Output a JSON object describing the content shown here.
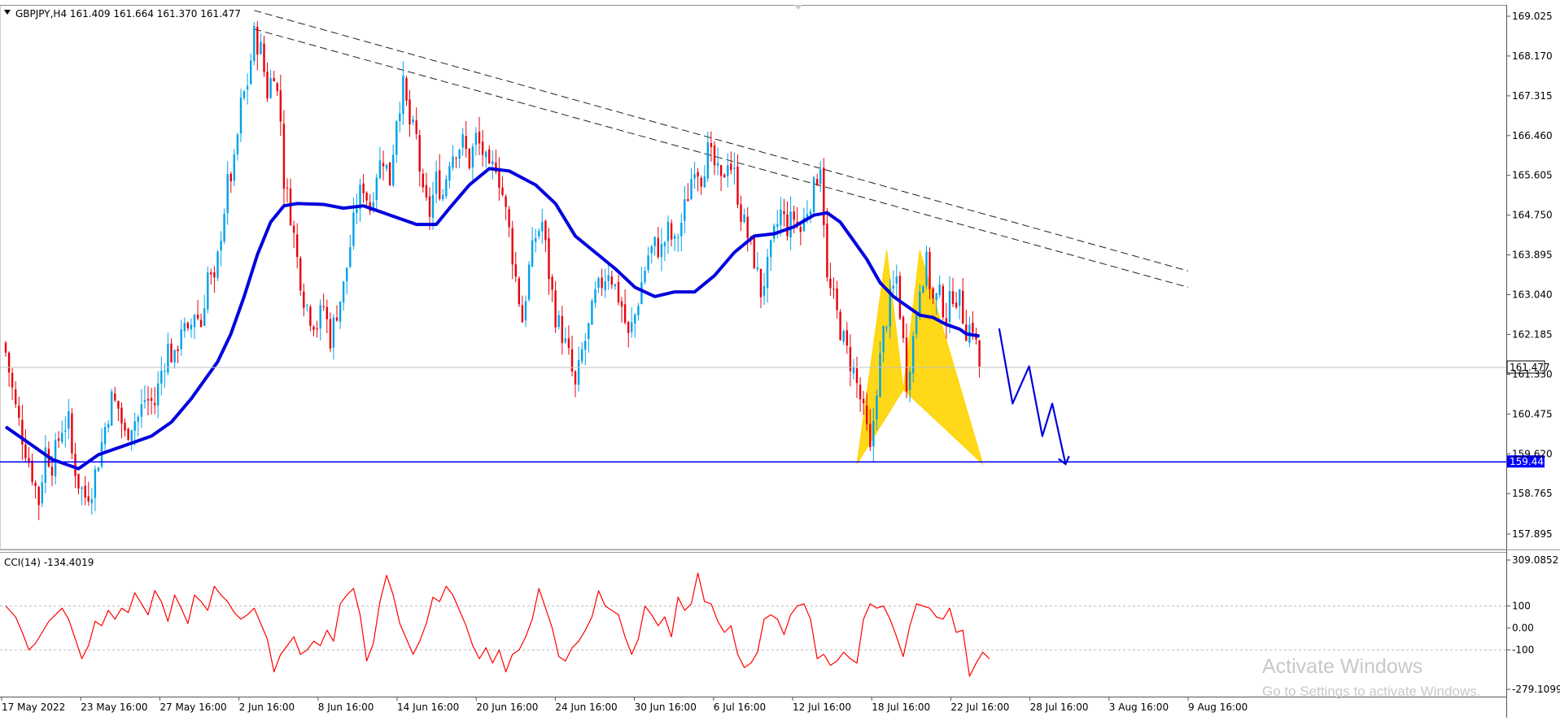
{
  "header": {
    "title": "GBPJPY,H4  161.409 161.664 161.370 161.477",
    "arrow_icon": "triangle-down-icon"
  },
  "price_axis": {
    "ticks": [
      "169.025",
      "168.170",
      "167.315",
      "166.460",
      "165.605",
      "164.750",
      "163.895",
      "163.040",
      "162.185",
      "161.330",
      "160.475",
      "159.620",
      "158.765",
      "157.895"
    ]
  },
  "price_levels": {
    "current_label": "161.477",
    "current_value": 161.477,
    "support_label": "159.447",
    "support_value": 159.447,
    "support_color": "#0000ff"
  },
  "cci_panel": {
    "title": "CCI(14) -134.4019",
    "scale_labels": [
      "309.0852",
      "100",
      "0.00",
      "-100",
      "-279.1099"
    ],
    "scale_values": [
      309.0852,
      100,
      0,
      -100,
      -279.1099
    ],
    "line_color": "#ff0000"
  },
  "time_axis": {
    "labels": [
      "17 May 2022",
      "23 May 16:00",
      "27 May 16:00",
      "2 Jun 16:00",
      "8 Jun 16:00",
      "14 Jun 16:00",
      "20 Jun 16:00",
      "24 Jun 16:00",
      "30 Jun 16:00",
      "6 Jul 16:00",
      "12 Jul 16:00",
      "18 Jul 16:00",
      "22 Jul 16:00",
      "28 Jul 16:00",
      "3 Aug 16:00",
      "9 Aug 16:00"
    ]
  },
  "watermark": {
    "line1": "Activate Windows",
    "line2": "Go to Settings to activate Windows."
  },
  "chart_data": {
    "type": "candlestick",
    "symbol": "GBPJPY",
    "timeframe": "H4",
    "ylim": [
      157.8,
      169.2
    ],
    "bull_color": "#00a2e8",
    "bear_color": "#e8000b",
    "ma_color": "#0000dd",
    "pattern_color": "#ffd400",
    "close_path": [
      [
        0,
        161.8
      ],
      [
        3,
        160.6
      ],
      [
        5,
        160.0
      ],
      [
        8,
        159.2
      ],
      [
        10,
        158.6
      ],
      [
        12,
        159.7
      ],
      [
        14,
        159.4
      ],
      [
        17,
        160.2
      ],
      [
        19,
        160.3
      ],
      [
        20,
        159.6
      ],
      [
        22,
        159.0
      ],
      [
        24,
        158.7
      ],
      [
        26,
        158.9
      ],
      [
        28,
        159.5
      ],
      [
        30,
        160.2
      ],
      [
        32,
        160.8
      ],
      [
        34,
        160.6
      ],
      [
        36,
        160.0
      ],
      [
        38,
        160.3
      ],
      [
        40,
        160.4
      ],
      [
        42,
        160.8
      ],
      [
        45,
        160.7
      ],
      [
        47,
        161.4
      ],
      [
        49,
        161.9
      ],
      [
        51,
        161.6
      ],
      [
        53,
        162.4
      ],
      [
        55,
        162.1
      ],
      [
        57,
        162.7
      ],
      [
        59,
        162.4
      ],
      [
        61,
        163.5
      ],
      [
        63,
        163.2
      ],
      [
        65,
        164.4
      ],
      [
        67,
        165.4
      ],
      [
        69,
        165.8
      ],
      [
        71,
        167.1
      ],
      [
        73,
        167.6
      ],
      [
        75,
        168.6
      ],
      [
        77,
        168.3
      ],
      [
        79,
        167.4
      ],
      [
        81,
        167.9
      ],
      [
        83,
        166.8
      ],
      [
        84,
        165.5
      ],
      [
        86,
        164.8
      ],
      [
        88,
        163.8
      ],
      [
        90,
        163.0
      ],
      [
        92,
        162.6
      ],
      [
        94,
        162.4
      ],
      [
        96,
        162.8
      ],
      [
        98,
        162.1
      ],
      [
        100,
        162.7
      ],
      [
        102,
        163.2
      ],
      [
        104,
        164.1
      ],
      [
        106,
        165.0
      ],
      [
        108,
        165.4
      ],
      [
        110,
        164.9
      ],
      [
        112,
        165.7
      ],
      [
        114,
        166.0
      ],
      [
        116,
        165.5
      ],
      [
        118,
        166.9
      ],
      [
        120,
        167.5
      ],
      [
        122,
        166.7
      ],
      [
        124,
        166.4
      ],
      [
        126,
        165.1
      ],
      [
        128,
        164.8
      ],
      [
        130,
        165.5
      ],
      [
        132,
        165.2
      ],
      [
        134,
        166.0
      ],
      [
        136,
        166.2
      ],
      [
        138,
        166.3
      ],
      [
        140,
        165.9
      ],
      [
        142,
        166.4
      ],
      [
        144,
        166.1
      ],
      [
        146,
        165.6
      ],
      [
        148,
        165.9
      ],
      [
        150,
        165.2
      ],
      [
        152,
        164.4
      ],
      [
        154,
        163.4
      ],
      [
        156,
        162.5
      ],
      [
        158,
        163.6
      ],
      [
        160,
        164.3
      ],
      [
        162,
        164.6
      ],
      [
        164,
        163.5
      ],
      [
        166,
        162.6
      ],
      [
        168,
        162.2
      ],
      [
        170,
        161.7
      ],
      [
        172,
        161.0
      ],
      [
        174,
        161.8
      ],
      [
        176,
        162.3
      ],
      [
        178,
        163.0
      ],
      [
        180,
        163.3
      ],
      [
        182,
        163.6
      ],
      [
        184,
        163.2
      ],
      [
        186,
        162.8
      ],
      [
        188,
        162.1
      ],
      [
        190,
        162.6
      ],
      [
        192,
        163.3
      ],
      [
        194,
        163.9
      ],
      [
        196,
        164.1
      ],
      [
        198,
        164.0
      ],
      [
        200,
        164.4
      ],
      [
        202,
        164.1
      ],
      [
        204,
        164.6
      ],
      [
        206,
        165.2
      ],
      [
        208,
        165.9
      ],
      [
        210,
        165.6
      ],
      [
        212,
        166.1
      ],
      [
        214,
        165.8
      ],
      [
        216,
        165.4
      ],
      [
        218,
        166.0
      ],
      [
        220,
        165.6
      ],
      [
        222,
        164.8
      ],
      [
        224,
        164.3
      ],
      [
        226,
        163.8
      ],
      [
        228,
        163.1
      ],
      [
        230,
        163.6
      ],
      [
        232,
        164.3
      ],
      [
        234,
        164.8
      ],
      [
        236,
        164.5
      ],
      [
        238,
        164.7
      ],
      [
        240,
        164.4
      ],
      [
        242,
        164.9
      ],
      [
        244,
        165.3
      ],
      [
        246,
        165.9
      ],
      [
        247,
        164.7
      ],
      [
        248,
        163.3
      ],
      [
        250,
        162.9
      ],
      [
        252,
        162.3
      ],
      [
        254,
        161.8
      ],
      [
        256,
        161.4
      ],
      [
        258,
        160.8
      ],
      [
        260,
        160.1
      ],
      [
        261,
        159.6
      ],
      [
        263,
        161.1
      ],
      [
        265,
        162.2
      ],
      [
        267,
        162.9
      ],
      [
        269,
        163.4
      ],
      [
        271,
        162.0
      ],
      [
        272,
        161.2
      ],
      [
        274,
        162.1
      ],
      [
        276,
        163.3
      ],
      [
        278,
        163.7
      ],
      [
        280,
        162.9
      ],
      [
        282,
        163.0
      ],
      [
        284,
        162.6
      ],
      [
        286,
        163.1
      ],
      [
        288,
        162.9
      ],
      [
        290,
        162.3
      ],
      [
        292,
        162.4
      ],
      [
        294,
        161.5
      ]
    ],
    "moving_average": [
      [
        0,
        160.2
      ],
      [
        6,
        159.9
      ],
      [
        14,
        159.5
      ],
      [
        22,
        159.3
      ],
      [
        28,
        159.6
      ],
      [
        36,
        159.8
      ],
      [
        44,
        160.0
      ],
      [
        50,
        160.3
      ],
      [
        56,
        160.8
      ],
      [
        60,
        161.2
      ],
      [
        64,
        161.6
      ],
      [
        68,
        162.2
      ],
      [
        72,
        163.0
      ],
      [
        76,
        163.9
      ],
      [
        80,
        164.6
      ],
      [
        84,
        164.95
      ],
      [
        88,
        165.0
      ],
      [
        96,
        164.98
      ],
      [
        102,
        164.9
      ],
      [
        108,
        164.95
      ],
      [
        114,
        164.8
      ],
      [
        120,
        164.65
      ],
      [
        124,
        164.55
      ],
      [
        130,
        164.55
      ],
      [
        134,
        164.9
      ],
      [
        140,
        165.4
      ],
      [
        146,
        165.75
      ],
      [
        152,
        165.7
      ],
      [
        160,
        165.4
      ],
      [
        166,
        165.0
      ],
      [
        172,
        164.3
      ],
      [
        178,
        163.95
      ],
      [
        184,
        163.6
      ],
      [
        190,
        163.2
      ],
      [
        196,
        163.0
      ],
      [
        202,
        163.1
      ],
      [
        208,
        163.1
      ],
      [
        214,
        163.45
      ],
      [
        220,
        163.95
      ],
      [
        226,
        164.3
      ],
      [
        232,
        164.35
      ],
      [
        238,
        164.5
      ],
      [
        244,
        164.75
      ],
      [
        248,
        164.8
      ],
      [
        252,
        164.6
      ],
      [
        256,
        164.2
      ],
      [
        260,
        163.8
      ],
      [
        264,
        163.3
      ],
      [
        268,
        163.0
      ],
      [
        272,
        162.8
      ],
      [
        276,
        162.6
      ],
      [
        280,
        162.55
      ],
      [
        284,
        162.4
      ],
      [
        288,
        162.3
      ],
      [
        290,
        162.2
      ],
      [
        294,
        162.15
      ]
    ],
    "trendlines": [
      {
        "name": "upper",
        "from": [
          75,
          169.15
        ],
        "to": [
          357,
          163.55
        ]
      },
      {
        "name": "lower",
        "from": [
          75,
          168.75
        ],
        "to": [
          357,
          163.2
        ]
      }
    ],
    "harmonic_pattern": {
      "points": [
        [
          257,
          159.4
        ],
        [
          266,
          164.0
        ],
        [
          271,
          161.0
        ],
        [
          276,
          164.0
        ],
        [
          295,
          159.4
        ]
      ]
    },
    "projection": [
      [
        300,
        162.3
      ],
      [
        304,
        160.7
      ],
      [
        309,
        161.5
      ],
      [
        313,
        160.0
      ],
      [
        316,
        160.7
      ],
      [
        320,
        159.4
      ]
    ],
    "cci_series": [
      [
        0,
        100
      ],
      [
        3,
        50
      ],
      [
        5,
        -20
      ],
      [
        7,
        -100
      ],
      [
        9,
        -70
      ],
      [
        11,
        -20
      ],
      [
        13,
        30
      ],
      [
        15,
        60
      ],
      [
        17,
        90
      ],
      [
        19,
        40
      ],
      [
        21,
        -50
      ],
      [
        23,
        -140
      ],
      [
        25,
        -80
      ],
      [
        27,
        30
      ],
      [
        29,
        10
      ],
      [
        31,
        80
      ],
      [
        33,
        40
      ],
      [
        35,
        90
      ],
      [
        37,
        70
      ],
      [
        39,
        160
      ],
      [
        41,
        110
      ],
      [
        43,
        60
      ],
      [
        45,
        170
      ],
      [
        47,
        120
      ],
      [
        49,
        30
      ],
      [
        51,
        150
      ],
      [
        53,
        90
      ],
      [
        55,
        20
      ],
      [
        57,
        150
      ],
      [
        59,
        120
      ],
      [
        61,
        80
      ],
      [
        63,
        190
      ],
      [
        65,
        150
      ],
      [
        67,
        120
      ],
      [
        69,
        70
      ],
      [
        71,
        40
      ],
      [
        73,
        60
      ],
      [
        75,
        90
      ],
      [
        77,
        20
      ],
      [
        79,
        -50
      ],
      [
        81,
        -200
      ],
      [
        83,
        -120
      ],
      [
        85,
        -80
      ],
      [
        87,
        -40
      ],
      [
        89,
        -120
      ],
      [
        91,
        -100
      ],
      [
        93,
        -60
      ],
      [
        95,
        -80
      ],
      [
        97,
        -10
      ],
      [
        99,
        -60
      ],
      [
        101,
        110
      ],
      [
        103,
        150
      ],
      [
        105,
        180
      ],
      [
        107,
        60
      ],
      [
        109,
        -150
      ],
      [
        111,
        -70
      ],
      [
        113,
        120
      ],
      [
        115,
        240
      ],
      [
        117,
        150
      ],
      [
        119,
        20
      ],
      [
        121,
        -50
      ],
      [
        123,
        -120
      ],
      [
        125,
        -60
      ],
      [
        127,
        20
      ],
      [
        129,
        140
      ],
      [
        131,
        120
      ],
      [
        133,
        190
      ],
      [
        135,
        150
      ],
      [
        137,
        80
      ],
      [
        139,
        10
      ],
      [
        141,
        -80
      ],
      [
        143,
        -140
      ],
      [
        145,
        -90
      ],
      [
        147,
        -160
      ],
      [
        149,
        -100
      ],
      [
        151,
        -200
      ],
      [
        153,
        -120
      ],
      [
        155,
        -100
      ],
      [
        157,
        -40
      ],
      [
        159,
        40
      ],
      [
        161,
        180
      ],
      [
        163,
        90
      ],
      [
        165,
        0
      ],
      [
        167,
        -130
      ],
      [
        169,
        -150
      ],
      [
        171,
        -90
      ],
      [
        173,
        -60
      ],
      [
        175,
        -10
      ],
      [
        177,
        50
      ],
      [
        179,
        170
      ],
      [
        181,
        100
      ],
      [
        183,
        80
      ],
      [
        185,
        60
      ],
      [
        187,
        -40
      ],
      [
        189,
        -120
      ],
      [
        191,
        -50
      ],
      [
        193,
        100
      ],
      [
        195,
        60
      ],
      [
        197,
        10
      ],
      [
        199,
        50
      ],
      [
        201,
        -40
      ],
      [
        203,
        140
      ],
      [
        205,
        80
      ],
      [
        207,
        110
      ],
      [
        209,
        250
      ],
      [
        211,
        120
      ],
      [
        213,
        110
      ],
      [
        215,
        30
      ],
      [
        217,
        -20
      ],
      [
        219,
        10
      ],
      [
        221,
        -120
      ],
      [
        223,
        -180
      ],
      [
        225,
        -160
      ],
      [
        227,
        -110
      ],
      [
        229,
        40
      ],
      [
        231,
        60
      ],
      [
        233,
        40
      ],
      [
        235,
        -30
      ],
      [
        237,
        60
      ],
      [
        239,
        100
      ],
      [
        241,
        110
      ],
      [
        243,
        40
      ],
      [
        245,
        -140
      ],
      [
        247,
        -120
      ],
      [
        249,
        -170
      ],
      [
        251,
        -150
      ],
      [
        253,
        -110
      ],
      [
        255,
        -140
      ],
      [
        257,
        -160
      ],
      [
        259,
        40
      ],
      [
        261,
        110
      ],
      [
        263,
        90
      ],
      [
        265,
        100
      ],
      [
        267,
        40
      ],
      [
        269,
        -40
      ],
      [
        271,
        -130
      ],
      [
        273,
        10
      ],
      [
        275,
        110
      ],
      [
        277,
        100
      ],
      [
        279,
        90
      ],
      [
        281,
        50
      ],
      [
        283,
        40
      ],
      [
        285,
        90
      ],
      [
        287,
        -20
      ],
      [
        289,
        -10
      ],
      [
        291,
        -220
      ],
      [
        293,
        -160
      ],
      [
        295,
        -110
      ],
      [
        297,
        -140
      ]
    ]
  }
}
